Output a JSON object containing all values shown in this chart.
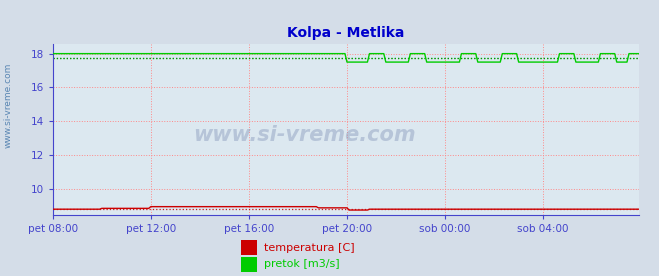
{
  "title": "Kolpa - Metlika",
  "title_color": "#0000cc",
  "bg_color": "#d4dde8",
  "plot_bg_color": "#dce8f0",
  "grid_color": "#ff8888",
  "axis_color": "#4444cc",
  "tick_label_color": "#3333aa",
  "ylabel_side_text": "www.si-vreme.com",
  "watermark": "www.si-vreme.com",
  "xlim": [
    0,
    287
  ],
  "ylim": [
    8.44,
    18.56
  ],
  "yticks": [
    10,
    12,
    14,
    16,
    18
  ],
  "xtick_positions": [
    0,
    48,
    96,
    144,
    192,
    240
  ],
  "xtick_labels": [
    "pet 08:00",
    "pet 12:00",
    "pet 16:00",
    "pet 20:00",
    "sob 00:00",
    "sob 04:00"
  ],
  "temp_color": "#cc0000",
  "temp_dot_color": "#cc0000",
  "temp_base": 8.8,
  "flow_color": "#00cc00",
  "flow_dot_color": "#009900",
  "flow_high": 18.0,
  "flow_low": 17.5,
  "legend_temp_color": "#cc0000",
  "legend_flow_color": "#00cc00",
  "legend_temp_label": "temperatura [C]",
  "legend_flow_label": "pretok [m3/s]"
}
